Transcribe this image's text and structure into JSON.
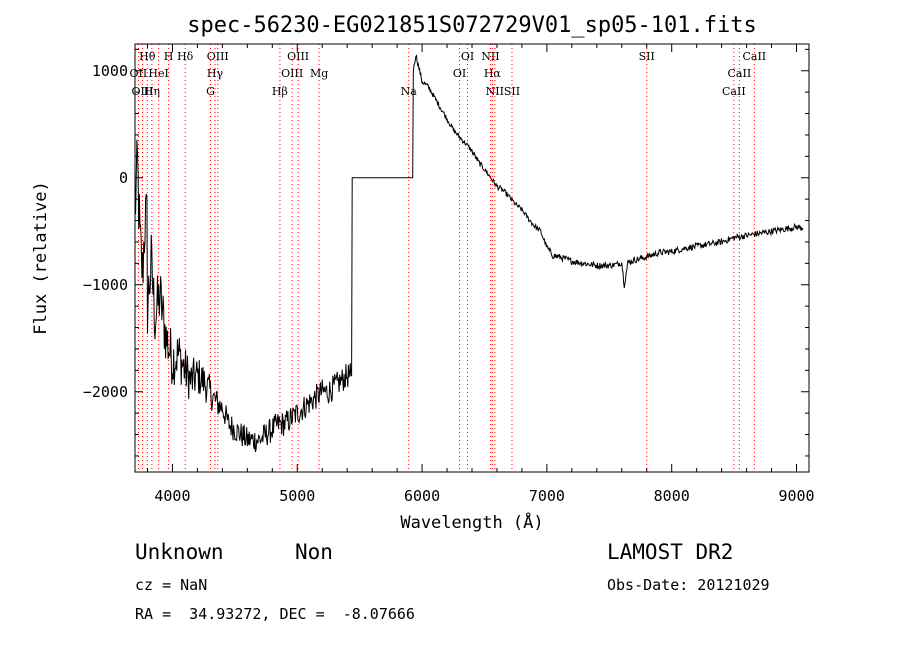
{
  "chart_data": {
    "type": "line",
    "title": "spec-56230-EG021851S072729V01_sp05-101.fits",
    "xlabel": "Wavelength (Å)",
    "ylabel": "Flux (relative)",
    "xlim": [
      3700,
      9100
    ],
    "ylim": [
      -2750,
      1250
    ],
    "x_ticks": [
      4000,
      5000,
      6000,
      7000,
      8000,
      9000
    ],
    "x_tick_labels": [
      "4000",
      "5000",
      "6000",
      "7000",
      "8000",
      "9000"
    ],
    "y_ticks": [
      1000,
      0,
      -1000,
      -2000
    ],
    "y_tick_labels": [
      "1000",
      "0",
      "−1000",
      "−2000"
    ],
    "grid": false,
    "series": [
      {
        "color": "#000000",
        "x": [
          3700,
          3720,
          3740,
          3760,
          3780,
          3800,
          3830,
          3860,
          3900,
          3950,
          4000,
          4050,
          4100,
          4150,
          4200,
          4250,
          4300,
          4350,
          4400,
          4450,
          4500,
          4550,
          4600,
          4650,
          4700,
          4750,
          4800,
          4850,
          4900,
          4950,
          5000,
          5050,
          5100,
          5150,
          5200,
          5250,
          5300,
          5350,
          5400,
          5430,
          5440,
          5500,
          5600,
          5700,
          5800,
          5920,
          5930,
          5950,
          6000,
          6050,
          6100,
          6150,
          6200,
          6250,
          6300,
          6350,
          6400,
          6450,
          6500,
          6550,
          6600,
          6650,
          6700,
          6750,
          6800,
          6850,
          6900,
          6950,
          7000,
          7050,
          7100,
          7150,
          7200,
          7300,
          7400,
          7500,
          7560,
          7600,
          7620,
          7650,
          7700,
          7800,
          7900,
          8000,
          8100,
          8200,
          8300,
          8400,
          8500,
          8600,
          8700,
          8800,
          8900,
          9000,
          9050
        ],
        "y": [
          -300,
          100,
          -600,
          -900,
          -400,
          -1200,
          -800,
          -1300,
          -1100,
          -1500,
          -1700,
          -1650,
          -1800,
          -1900,
          -1850,
          -1900,
          -2000,
          -2100,
          -2150,
          -2300,
          -2350,
          -2400,
          -2450,
          -2450,
          -2450,
          -2400,
          -2350,
          -2300,
          -2300,
          -2250,
          -2200,
          -2150,
          -2100,
          -2050,
          -2000,
          -2000,
          -1950,
          -1900,
          -1850,
          -1850,
          0,
          0,
          0,
          0,
          0,
          0,
          1000,
          1150,
          900,
          850,
          750,
          650,
          550,
          450,
          380,
          320,
          250,
          150,
          80,
          0,
          -80,
          -120,
          -180,
          -250,
          -300,
          -380,
          -450,
          -500,
          -650,
          -730,
          -740,
          -760,
          -780,
          -800,
          -820,
          -820,
          -810,
          -790,
          -1000,
          -790,
          -770,
          -740,
          -700,
          -690,
          -660,
          -640,
          -620,
          -600,
          -560,
          -540,
          -520,
          -500,
          -480,
          -460,
          -470
        ]
      }
    ],
    "line_markers": [
      {
        "label": "Hθ",
        "x": 3798
      },
      {
        "label": "OII",
        "x": 3727
      },
      {
        "label": "OIII",
        "x": 3760
      },
      {
        "label": "H",
        "x": 3969
      },
      {
        "label": "HeI",
        "x": 3889
      },
      {
        "label": "Hη",
        "x": 3835
      },
      {
        "label": "Hδ",
        "x": 4102
      },
      {
        "label": "Hγ",
        "x": 4341
      },
      {
        "label": "G",
        "x": 4305
      },
      {
        "label": "OIII",
        "x": 4363
      },
      {
        "label": "OIII",
        "x": 4959
      },
      {
        "label": "Hβ",
        "x": 4861
      },
      {
        "label": "OIII",
        "x": 5007
      },
      {
        "label": "Mg",
        "x": 5175
      },
      {
        "label": "Na",
        "x": 5893
      },
      {
        "label": "OI",
        "x": 6364
      },
      {
        "label": "OI",
        "x": 6300
      },
      {
        "label": "NII",
        "x": 6583
      },
      {
        "label": "NII",
        "x": 6548
      },
      {
        "label": "Hα",
        "x": 6563
      },
      {
        "label": "SII",
        "x": 6720
      },
      {
        "label": "SII",
        "x": 7800
      },
      {
        "label": "CaII",
        "x": 8542
      },
      {
        "label": "CaII",
        "x": 8498
      },
      {
        "label": "CaII",
        "x": 8662
      }
    ],
    "marker_color": "#ff0000"
  },
  "info": {
    "class": "Unknown",
    "subclass": "Non",
    "survey": "LAMOST DR2",
    "cz": "cz = NaN",
    "obs_date": "Obs-Date: 20121029",
    "coords": "RA =  34.93272, DEC =  -8.07666"
  }
}
